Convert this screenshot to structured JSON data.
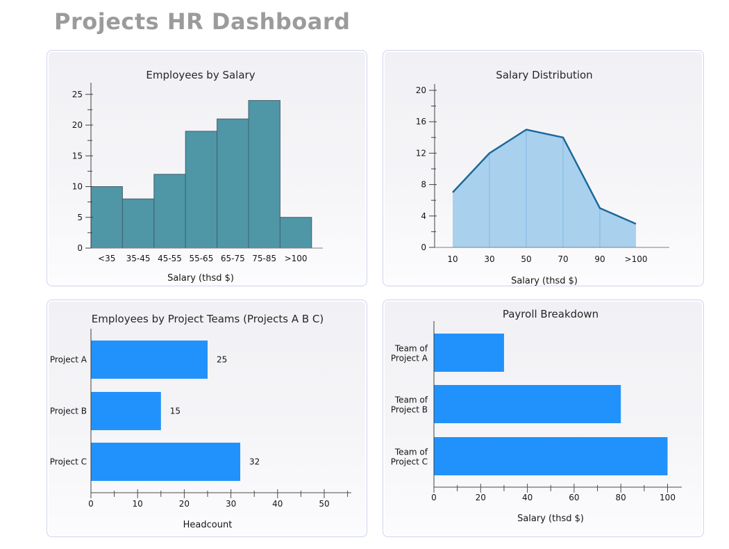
{
  "page": {
    "title": "Projects HR Dashboard"
  },
  "chart_data": [
    {
      "id": "employees-by-salary",
      "type": "bar",
      "title": "Employees by Salary",
      "categories": [
        "<35",
        "35-45",
        "45-55",
        "55-65",
        "65-75",
        "75-85",
        ">100"
      ],
      "values": [
        10,
        8,
        12,
        19,
        21,
        24,
        5
      ],
      "xlabel": "Salary (thsd $)",
      "ylabel": "",
      "ylim": [
        0,
        27
      ],
      "yticks": [
        0,
        5,
        10,
        15,
        20,
        25
      ],
      "y_minor_step": 2.5,
      "grid": false,
      "legend": "none",
      "bar_color": "#4f96a7",
      "bar_border": "#40616c"
    },
    {
      "id": "salary-distribution",
      "type": "area",
      "title": "Salary Distribution",
      "x_labels": [
        "10",
        "30",
        "50",
        "70",
        "90",
        ">100"
      ],
      "values": [
        7,
        12,
        15,
        14,
        5,
        3
      ],
      "xlabel": "Salary (thsd $)",
      "ylabel": "",
      "ylim": [
        0,
        21
      ],
      "yticks": [
        0,
        4,
        8,
        12,
        16,
        20
      ],
      "y_minor_step": 2,
      "grid": false,
      "legend": "none",
      "fill_color": "#a9d1ee",
      "line_color": "#1c689a",
      "divider_color": "#84b5de"
    },
    {
      "id": "employees-by-teams",
      "type": "hbar",
      "title": "Employees by Project Teams (Projects A B C)",
      "categories": [
        "Project A",
        "Project B",
        "Project C"
      ],
      "values": [
        25,
        15,
        32
      ],
      "value_labels": [
        "25",
        "15",
        "32"
      ],
      "show_values": true,
      "xlabel": "Headcount",
      "xlim": [
        0,
        53
      ],
      "xticks": [
        0,
        10,
        20,
        30,
        40,
        50
      ],
      "x_minor_step": 5,
      "grid": false,
      "legend": "none",
      "bar_color": "#2192fb"
    },
    {
      "id": "payroll-breakdown",
      "type": "hbar",
      "title": "Payroll Breakdown",
      "categories": [
        "Team of\nProject A",
        "Team of\nProject B",
        "Team of\nProject C"
      ],
      "values": [
        30,
        80,
        100
      ],
      "show_values": false,
      "xlabel": "Salary (thsd $)",
      "xlim": [
        0,
        106
      ],
      "xticks": [
        0,
        20,
        40,
        60,
        80,
        100
      ],
      "x_minor_step": 10,
      "grid": false,
      "legend": "none",
      "bar_color": "#2192fb"
    }
  ]
}
